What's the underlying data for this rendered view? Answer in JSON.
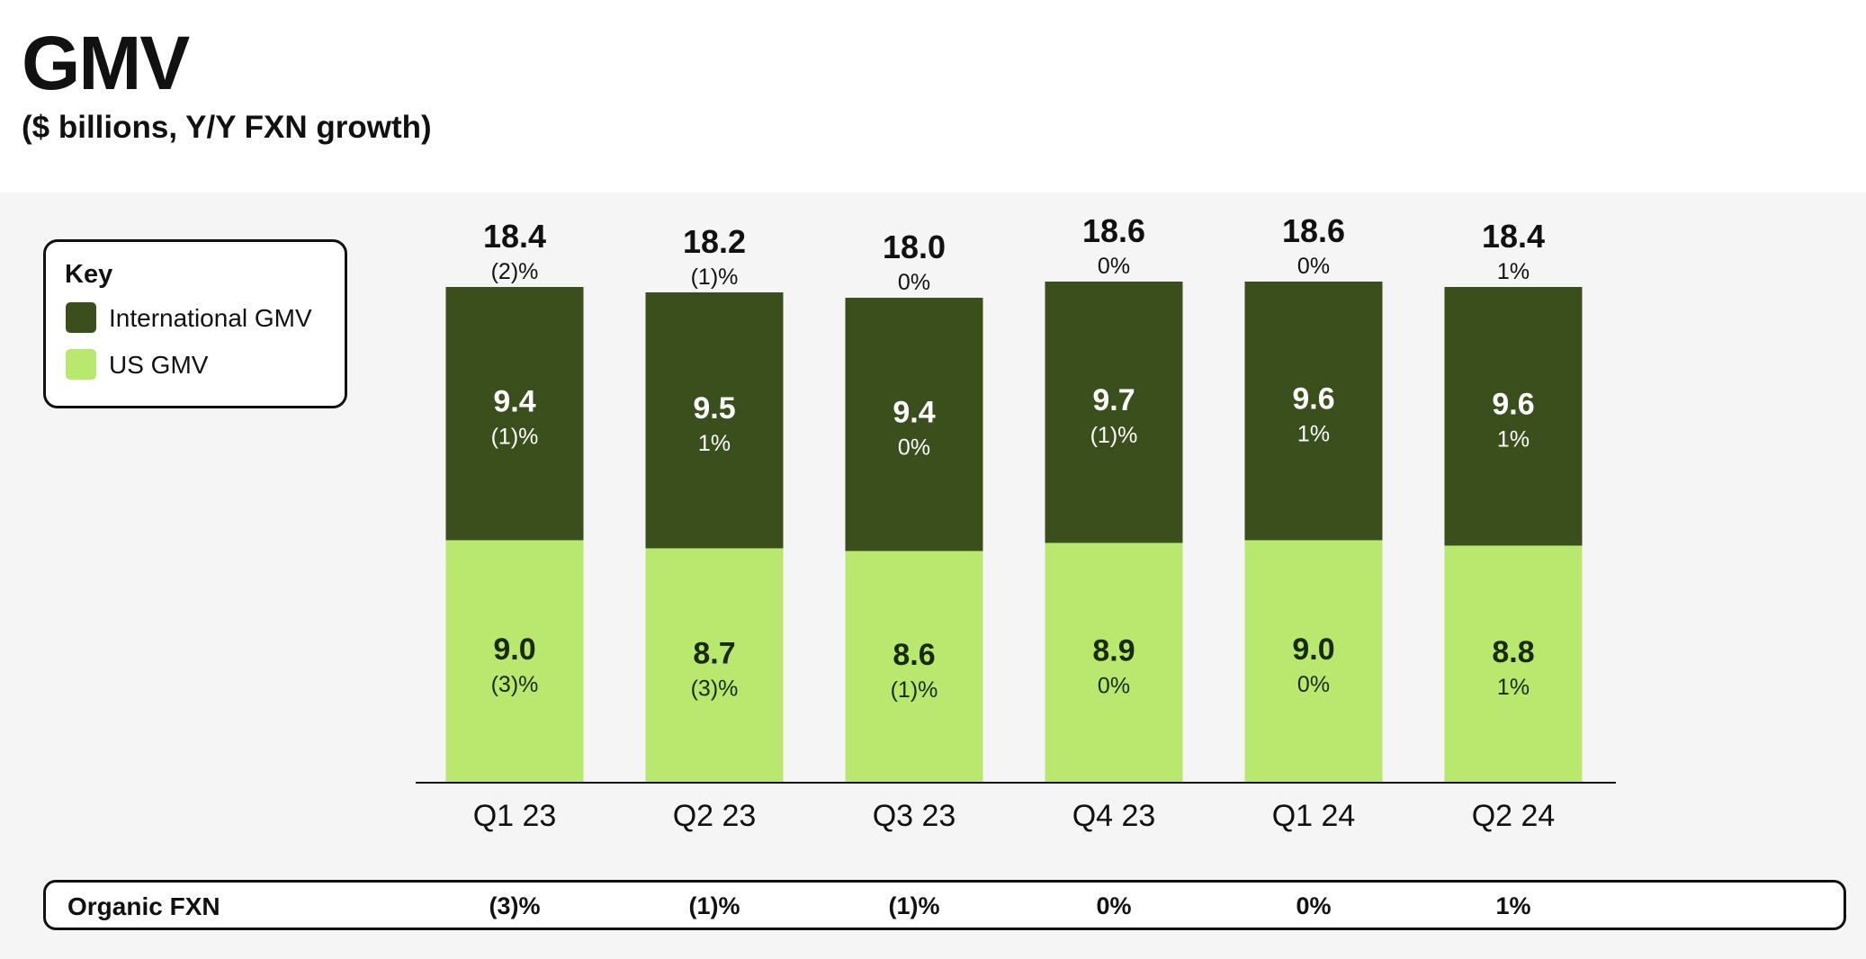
{
  "chart_data": {
    "type": "bar",
    "stacked": true,
    "title": "GMV",
    "subtitle": "($ billions, Y/Y FXN growth)",
    "categories": [
      "Q1 23",
      "Q2 23",
      "Q3 23",
      "Q4 23",
      "Q1 24",
      "Q2 24"
    ],
    "totals": [
      18.4,
      18.2,
      18.0,
      18.6,
      18.6,
      18.4
    ],
    "total_labels": [
      "18.4",
      "18.2",
      "18.0",
      "18.6",
      "18.6",
      "18.4"
    ],
    "total_growth": [
      "(2)%",
      "(1)%",
      "0%",
      "0%",
      "0%",
      "1%"
    ],
    "series": [
      {
        "name": "US GMV",
        "color": "#b8e96e",
        "text_color": "#1a2a0d",
        "values": [
          9.0,
          8.7,
          8.6,
          8.9,
          9.0,
          8.8
        ],
        "labels": [
          "9.0",
          "8.7",
          "8.6",
          "8.9",
          "9.0",
          "8.8"
        ],
        "growth": [
          "(3)%",
          "(3)%",
          "(1)%",
          "0%",
          "0%",
          "1%"
        ]
      },
      {
        "name": "International GMV",
        "color": "#3a4f1c",
        "text_color": "#ffffff",
        "values": [
          9.4,
          9.5,
          9.4,
          9.7,
          9.6,
          9.6
        ],
        "labels": [
          "9.4",
          "9.5",
          "9.4",
          "9.7",
          "9.6",
          "9.6"
        ],
        "growth": [
          "(1)%",
          "1%",
          "0%",
          "(1)%",
          "1%",
          "1%"
        ]
      }
    ],
    "ylim": [
      0,
      18.6
    ],
    "grid": false,
    "xlabel": "",
    "ylabel": ""
  },
  "legend": {
    "title": "Key",
    "items": [
      {
        "label": "International GMV",
        "color": "#3a4f1c"
      },
      {
        "label": "US GMV",
        "color": "#b8e96e"
      }
    ]
  },
  "organic_fxn": {
    "label": "Organic FXN",
    "values": [
      "(3)%",
      "(1)%",
      "(1)%",
      "0%",
      "0%",
      "1%"
    ]
  }
}
